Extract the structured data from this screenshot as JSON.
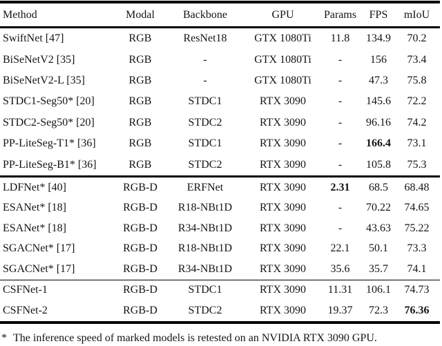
{
  "table": {
    "columns": {
      "method": "Method",
      "modal": "Modal",
      "backbone": "Backbone",
      "gpu": "GPU",
      "params": "Params",
      "fps": "FPS",
      "miou": "mIoU"
    },
    "rows": [
      {
        "method": "SwiftNet [47]",
        "modal": "RGB",
        "backbone": "ResNet18",
        "gpu": "GTX 1080Ti",
        "params": "11.8",
        "fps": "134.9",
        "miou": "70.2"
      },
      {
        "method": "BiSeNetV2 [35]",
        "modal": "RGB",
        "backbone": "-",
        "gpu": "GTX 1080Ti",
        "params": "-",
        "fps": "156",
        "miou": "73.4"
      },
      {
        "method": "BiSeNetV2-L [35]",
        "modal": "RGB",
        "backbone": "-",
        "gpu": "GTX 1080Ti",
        "params": "-",
        "fps": "47.3",
        "miou": "75.8"
      },
      {
        "method": "STDC1-Seg50* [20]",
        "modal": "RGB",
        "backbone": "STDC1",
        "gpu": "RTX 3090",
        "params": "-",
        "fps": "145.6",
        "miou": "72.2"
      },
      {
        "method": "STDC2-Seg50* [20]",
        "modal": "RGB",
        "backbone": "STDC2",
        "gpu": "RTX 3090",
        "params": "-",
        "fps": "96.16",
        "miou": "74.2"
      },
      {
        "method": "PP-LiteSeg-T1* [36]",
        "modal": "RGB",
        "backbone": "STDC1",
        "gpu": "RTX 3090",
        "params": "-",
        "fps": "166.4",
        "miou": "73.1"
      },
      {
        "method": "PP-LiteSeg-B1* [36]",
        "modal": "RGB",
        "backbone": "STDC2",
        "gpu": "RTX 3090",
        "params": "-",
        "fps": "105.8",
        "miou": "75.3"
      },
      {
        "method": "LDFNet* [40]",
        "modal": "RGB-D",
        "backbone": "ERFNet",
        "gpu": "RTX 3090",
        "params": "2.31",
        "fps": "68.5",
        "miou": "68.48"
      },
      {
        "method": "ESANet* [18]",
        "modal": "RGB-D",
        "backbone": "R18-NBt1D",
        "gpu": "RTX 3090",
        "params": "-",
        "fps": "70.22",
        "miou": "74.65"
      },
      {
        "method": "ESANet* [18]",
        "modal": "RGB-D",
        "backbone": "R34-NBt1D",
        "gpu": "RTX 3090",
        "params": "-",
        "fps": "43.63",
        "miou": "75.22"
      },
      {
        "method": "SGACNet* [17]",
        "modal": "RGB-D",
        "backbone": "R18-NBt1D",
        "gpu": "RTX 3090",
        "params": "22.1",
        "fps": "50.1",
        "miou": "73.3"
      },
      {
        "method": "SGACNet* [17]",
        "modal": "RGB-D",
        "backbone": "R34-NBt1D",
        "gpu": "RTX 3090",
        "params": "35.6",
        "fps": "35.7",
        "miou": "74.1"
      },
      {
        "method": "CSFNet-1",
        "modal": "RGB-D",
        "backbone": "STDC1",
        "gpu": "RTX 3090",
        "params": "11.31",
        "fps": "106.1",
        "miou": "74.73"
      },
      {
        "method": "CSFNet-2",
        "modal": "RGB-D",
        "backbone": "STDC2",
        "gpu": "RTX 3090",
        "params": "19.37",
        "fps": "72.3",
        "miou": "76.36"
      }
    ],
    "footnote_marker": "*",
    "footnote_text": "The inference speed of marked models is retested on an NVIDIA RTX 3090 GPU."
  }
}
